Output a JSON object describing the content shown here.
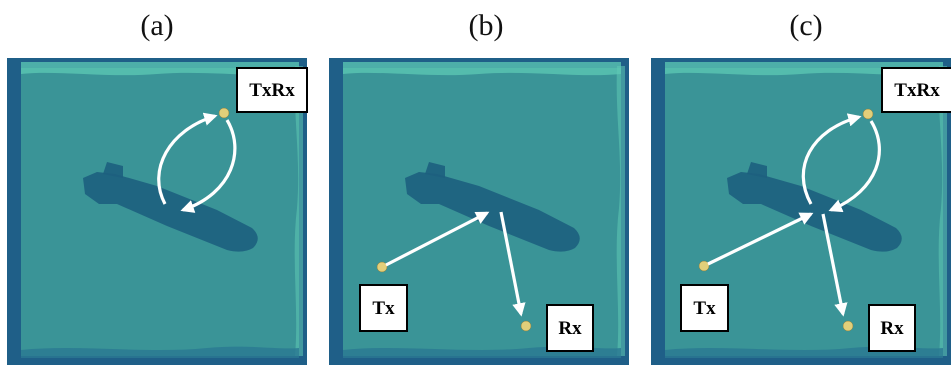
{
  "panels": [
    {
      "title": "(a)",
      "labels": {
        "txrx": "TxRx"
      }
    },
    {
      "title": "(b)",
      "labels": {
        "tx": "Tx",
        "rx": "Rx"
      }
    },
    {
      "title": "(c)",
      "labels": {
        "txrx": "TxRx",
        "tx": "Tx",
        "rx": "Rx"
      }
    }
  ],
  "colors": {
    "water": "#3a9497",
    "frame": "#1f5f88",
    "foam": "#5ec9b4",
    "submarine": "#1d5f7e",
    "node": "#e2cf7a",
    "arrow": "#ffffff"
  }
}
